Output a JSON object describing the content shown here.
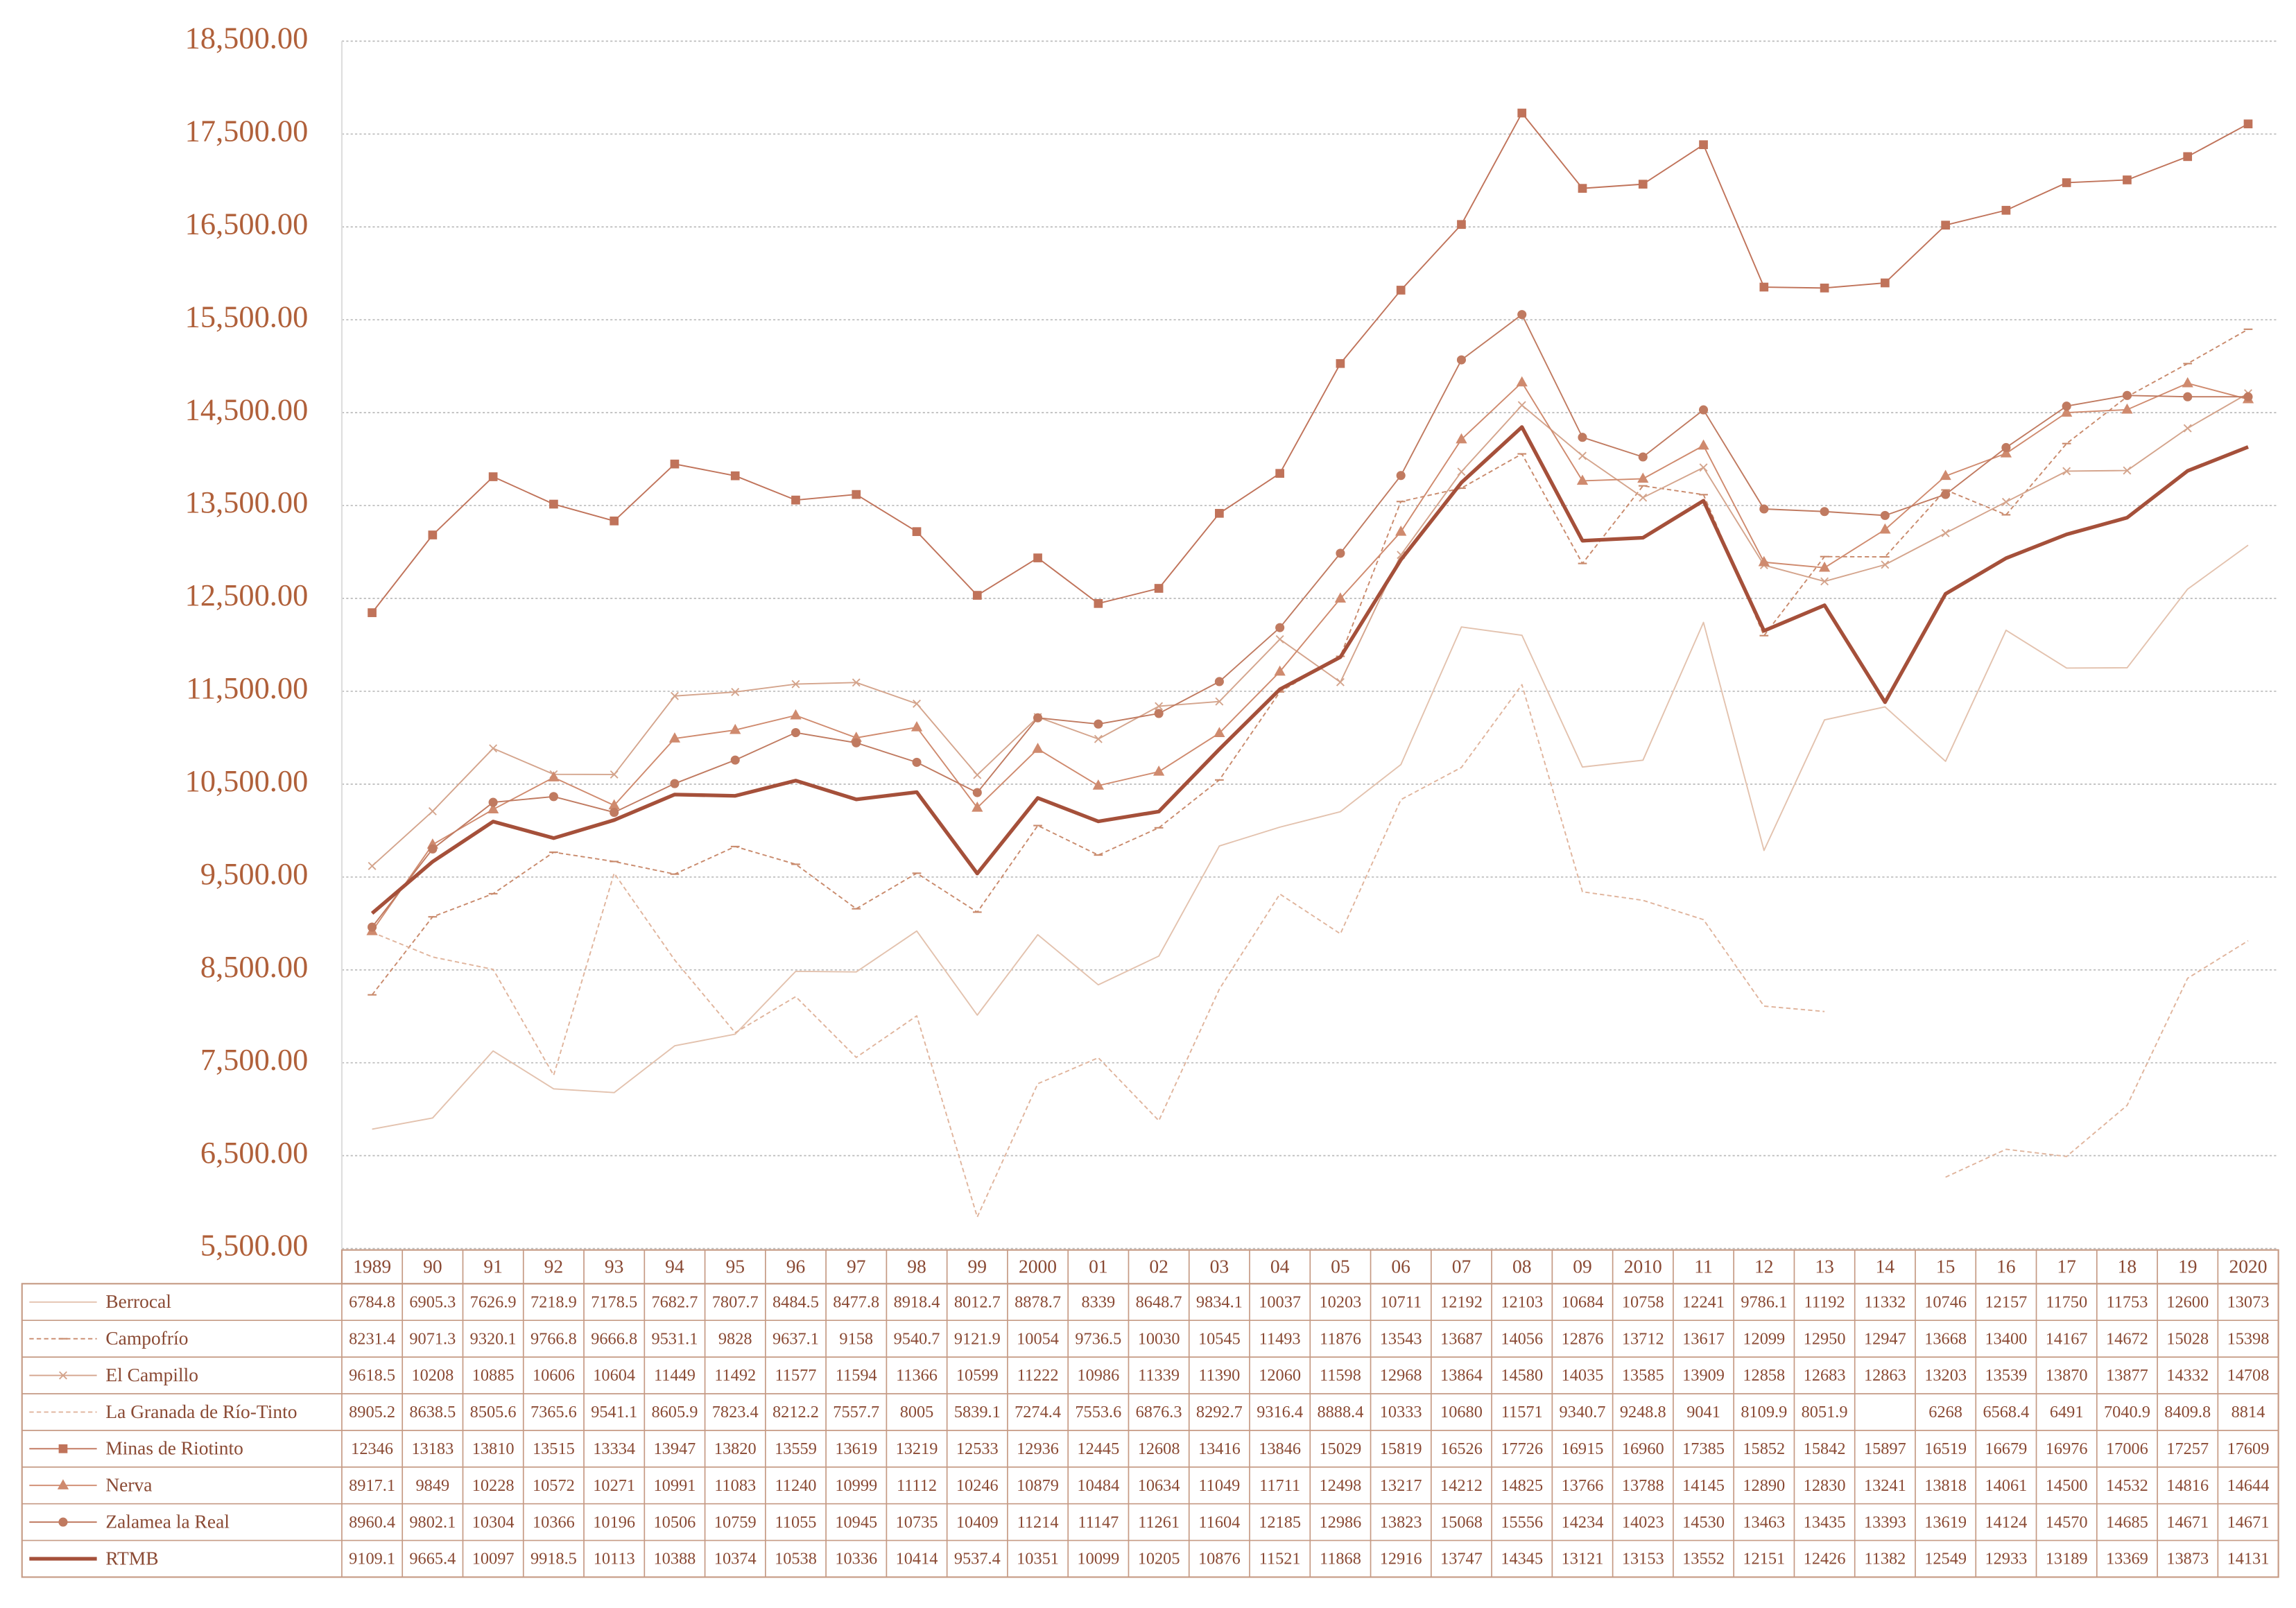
{
  "chart_data": {
    "type": "line",
    "categories": [
      "1989",
      "90",
      "91",
      "92",
      "93",
      "94",
      "95",
      "96",
      "97",
      "98",
      "99",
      "2000",
      "01",
      "02",
      "03",
      "04",
      "05",
      "06",
      "07",
      "08",
      "09",
      "2010",
      "11",
      "12",
      "13",
      "14",
      "15",
      "16",
      "17",
      "18",
      "19",
      "2020"
    ],
    "ylim": [
      5500,
      18500
    ],
    "yticks": [
      {
        "value": 5500,
        "label": "5,500.00"
      },
      {
        "value": 6500,
        "label": "6,500.00"
      },
      {
        "value": 7500,
        "label": "7,500.00"
      },
      {
        "value": 8500,
        "label": "8,500.00"
      },
      {
        "value": 9500,
        "label": "9,500.00"
      },
      {
        "value": 10500,
        "label": "10,500.00"
      },
      {
        "value": 11500,
        "label": "11,500.00"
      },
      {
        "value": 12500,
        "label": "12,500.00"
      },
      {
        "value": 13500,
        "label": "13,500.00"
      },
      {
        "value": 14500,
        "label": "14,500.00"
      },
      {
        "value": 15500,
        "label": "15,500.00"
      },
      {
        "value": 16500,
        "label": "16,500.00"
      },
      {
        "value": 17500,
        "label": "17,500.00"
      },
      {
        "value": 18500,
        "label": "18,500.00"
      }
    ],
    "grid": true,
    "series": [
      {
        "name": "Berrocal",
        "color": "#e3c2ae",
        "marker": "none",
        "dash": "none",
        "values": [
          6784.8,
          6905.3,
          7626.9,
          7218.9,
          7178.5,
          7682.7,
          7807.7,
          8484.5,
          8477.8,
          8918.4,
          8012.7,
          8878.7,
          8339,
          8648.7,
          9834.1,
          10037,
          10203,
          10711,
          12192,
          12103,
          10684,
          10758,
          12241,
          9786.1,
          11192,
          11332,
          10746,
          12157,
          11750,
          11753,
          12600,
          13073
        ]
      },
      {
        "name": "Campofrío",
        "color": "#c98a6c",
        "marker": "tick",
        "dash": "dash",
        "values": [
          8231.4,
          9071.3,
          9320.1,
          9766.8,
          9666.8,
          9531.1,
          9828,
          9637.1,
          9158,
          9540.7,
          9121.9,
          10054,
          9736.5,
          10030,
          10545,
          11493,
          11876,
          13543,
          13687,
          14056,
          12876,
          13712,
          13617,
          12099,
          12950,
          12947,
          13668,
          13400,
          14167,
          14672,
          15028,
          15398
        ]
      },
      {
        "name": "El Campillo",
        "color": "#d4a48c",
        "marker": "x",
        "dash": "none",
        "values": [
          9618.5,
          10208,
          10885,
          10606,
          10604,
          11449,
          11492,
          11577,
          11594,
          11366,
          10599,
          11222,
          10986,
          11339,
          11390,
          12060,
          11598,
          12968,
          13864,
          14580,
          14035,
          13585,
          13909,
          12858,
          12683,
          12863,
          13203,
          13539,
          13870,
          13877,
          14332,
          14708
        ]
      },
      {
        "name": "La Granada de Río-Tinto",
        "color": "#e0b49c",
        "marker": "none",
        "dash": "dash",
        "values": [
          8905.2,
          8638.5,
          8505.6,
          7365.6,
          9541.1,
          8605.9,
          7823.4,
          8212.2,
          7557.7,
          8005,
          5839.1,
          7274.4,
          7553.6,
          6876.3,
          8292.7,
          9316.4,
          8888.4,
          10333,
          10680,
          11571,
          9340.7,
          9248.8,
          9041,
          8109.9,
          8051.9,
          null,
          6268,
          6568.4,
          6491,
          7040.9,
          8409.8,
          8814
        ]
      },
      {
        "name": "Minas de Riotinto",
        "color": "#c0735a",
        "marker": "square",
        "dash": "none",
        "values": [
          12346,
          13183,
          13810,
          13515,
          13334,
          13947,
          13820,
          13559,
          13619,
          13219,
          12533,
          12936,
          12445,
          12608,
          13416,
          13846,
          15029,
          15819,
          16526,
          17726,
          16915,
          16960,
          17385,
          15852,
          15842,
          15897,
          16519,
          16679,
          16976,
          17006,
          17257,
          17609
        ]
      },
      {
        "name": "Nerva",
        "color": "#cf8a6e",
        "marker": "triangle",
        "dash": "none",
        "values": [
          8917.1,
          9849,
          10228,
          10572,
          10271,
          10991,
          11083,
          11240,
          10999,
          11112,
          10246,
          10879,
          10484,
          10634,
          11049,
          11711,
          12498,
          13217,
          14212,
          14825,
          13766,
          13788,
          14145,
          12890,
          12830,
          13241,
          13818,
          14061,
          14500,
          14532,
          14816,
          14644
        ]
      },
      {
        "name": "Zalamea la Real",
        "color": "#c07a60",
        "marker": "circle",
        "dash": "none",
        "values": [
          8960.4,
          9802.1,
          10304,
          10366,
          10196,
          10506,
          10759,
          11055,
          10945,
          10735,
          10409,
          11214,
          11147,
          11261,
          11604,
          12185,
          12986,
          13823,
          15068,
          15556,
          14234,
          14023,
          14530,
          13463,
          13435,
          13393,
          13619,
          14124,
          14570,
          14685,
          14671,
          14671
        ]
      },
      {
        "name": "RTMB",
        "color": "#a5503a",
        "marker": "none",
        "dash": "none",
        "width": 2.5,
        "values": [
          9109.1,
          9665.4,
          10097,
          9918.5,
          10113,
          10388,
          10374,
          10538,
          10336,
          10414,
          9537.4,
          10351,
          10099,
          10205,
          10876,
          11521,
          11868,
          12916,
          13747,
          14345,
          13121,
          13153,
          13552,
          12151,
          12426,
          11382,
          12549,
          12933,
          13189,
          13369,
          13873,
          14131
        ]
      }
    ]
  }
}
